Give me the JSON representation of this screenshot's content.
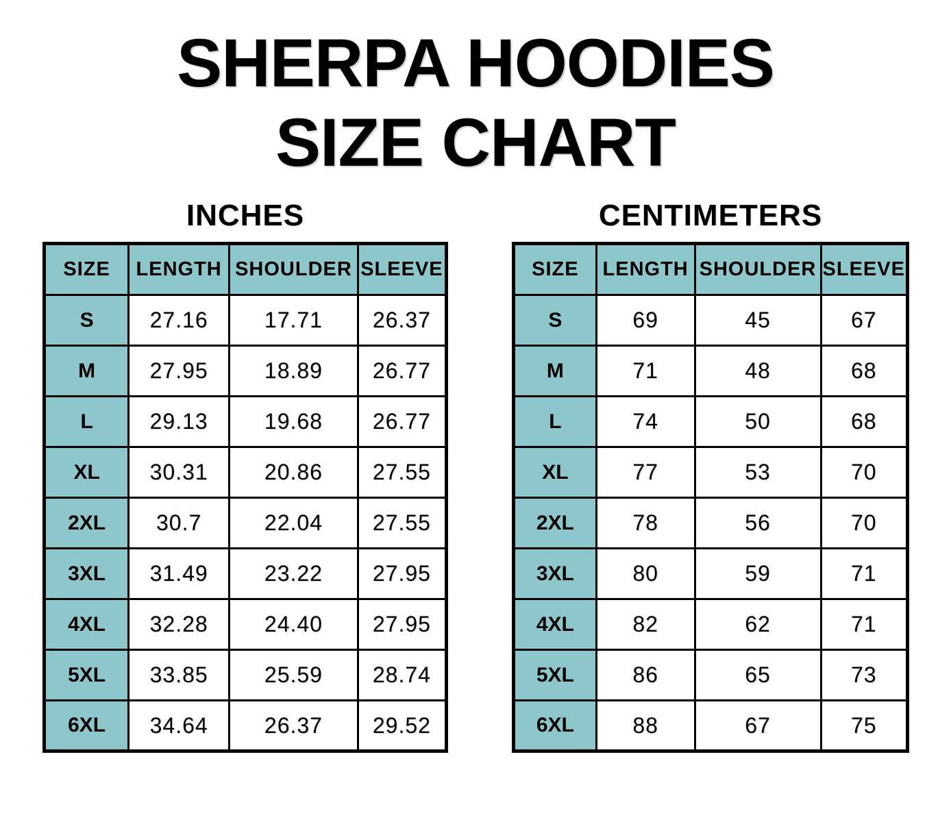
{
  "title": {
    "line1": "SHERPA HOODIES",
    "line2": "SIZE CHART"
  },
  "colors": {
    "header_bg": "#8DC7CB",
    "border": "#000000",
    "text": "#000000",
    "page_bg": "#FFFFFF"
  },
  "chart_data": [
    {
      "type": "table",
      "title": "SHERPA HOODIES SIZE CHART",
      "unit_label": "INCHES",
      "columns": [
        "SIZE",
        "LENGTH",
        "SHOULDER",
        "SLEEVE"
      ],
      "rows": [
        [
          "S",
          "27.16",
          "17.71",
          "26.37"
        ],
        [
          "M",
          "27.95",
          "18.89",
          "26.77"
        ],
        [
          "L",
          "29.13",
          "19.68",
          "26.77"
        ],
        [
          "XL",
          "30.31",
          "20.86",
          "27.55"
        ],
        [
          "2XL",
          "30.7",
          "22.04",
          "27.55"
        ],
        [
          "3XL",
          "31.49",
          "23.22",
          "27.95"
        ],
        [
          "4XL",
          "32.28",
          "24.40",
          "27.95"
        ],
        [
          "5XL",
          "33.85",
          "25.59",
          "28.74"
        ],
        [
          "6XL",
          "34.64",
          "26.37",
          "29.52"
        ]
      ]
    },
    {
      "type": "table",
      "title": "SHERPA HOODIES SIZE CHART",
      "unit_label": "CENTIMETERS",
      "columns": [
        "SIZE",
        "LENGTH",
        "SHOULDER",
        "SLEEVE"
      ],
      "rows": [
        [
          "S",
          "69",
          "45",
          "67"
        ],
        [
          "M",
          "71",
          "48",
          "68"
        ],
        [
          "L",
          "74",
          "50",
          "68"
        ],
        [
          "XL",
          "77",
          "53",
          "70"
        ],
        [
          "2XL",
          "78",
          "56",
          "70"
        ],
        [
          "3XL",
          "80",
          "59",
          "71"
        ],
        [
          "4XL",
          "82",
          "62",
          "71"
        ],
        [
          "5XL",
          "86",
          "65",
          "73"
        ],
        [
          "6XL",
          "88",
          "67",
          "75"
        ]
      ]
    }
  ]
}
